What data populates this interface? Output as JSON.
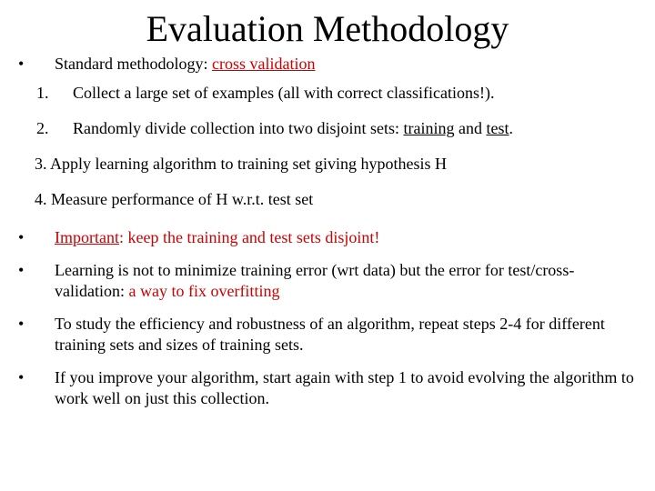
{
  "colors": {
    "background": "#ffffff",
    "text": "#000000",
    "accent": "#cc0000"
  },
  "typography": {
    "title_font_size": 40,
    "body_font_size": 18,
    "font_family": "Times New Roman"
  },
  "title": "Evaluation Methodology",
  "bullets": {
    "b1_pre": "Standard methodology: ",
    "b1_accent": "cross validation",
    "n1_mark": "1.",
    "n1_text": "Collect a large set of examples (all with correct classifications!).",
    "n2_mark": "2.",
    "n2_pre": "Randomly divide collection into two disjoint sets:  ",
    "n2_u1": "training",
    "n2_mid": " and ",
    "n2_u2": "test",
    "n2_post": ".",
    "n3_text": "3. Apply learning algorithm to training set giving hypothesis H",
    "n4_text": "4. Measure performance of H w.r.t. test set",
    "b2_u": "Important",
    "b2_post": ": keep the training and test sets disjoint!",
    "b3_pre": "Learning is not to minimize training error (wrt data) but the error for test/cross-validation: ",
    "b3_accent": "a way to fix overfitting",
    "b4_text": "To study the efficiency and robustness of an algorithm, repeat steps 2-4 for different training sets and sizes of training sets.",
    "b5_text": "If you improve your algorithm, start again with step 1 to avoid evolving the algorithm to work well on just this collection."
  }
}
